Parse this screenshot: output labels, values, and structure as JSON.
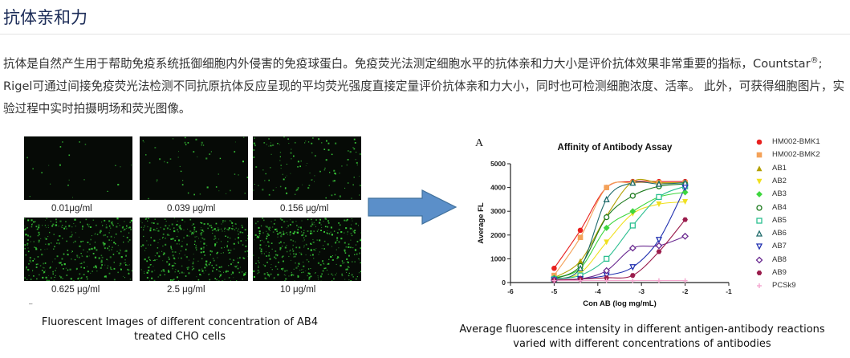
{
  "section": {
    "title": "抗体亲和力",
    "paragraph_pre": "抗体是自然产生用于帮助免疫系统抵御细胞内外侵害的免疫球蛋白。免疫荧光法测定细胞水平的抗体亲和力大小是评价抗体效果非常重要的指标，Countstar",
    "paragraph_reg": "®",
    "paragraph_post": "; Rigel可通过间接免疫荧光法检测不同抗原抗体反应呈现的平均荧光强度直接定量评价抗体亲和力大小，同时也可检测细胞浓度、活率。 此外，可获得细胞图片，实验过程中实时拍摄明场和荧光图像。"
  },
  "micrographs": {
    "images": [
      {
        "label": "0.01μg/ml",
        "density": 0.05
      },
      {
        "label": "0.039 μg/ml",
        "density": 0.12
      },
      {
        "label": "0.156 μg/ml",
        "density": 0.3
      },
      {
        "label": "0.625 μg/ml",
        "density": 0.85
      },
      {
        "label": "2.5 μg/ml",
        "density": 0.95
      },
      {
        "label": "10 μg/ml",
        "density": 1.0
      }
    ],
    "dot_color": "#3cd43c",
    "dash_mark": "–",
    "caption_line1": "Fluorescent Images of different concentration of AB4",
    "caption_line2": "treated CHO cells"
  },
  "arrow": {
    "color": "#5b8fc9",
    "border": "#41719c"
  },
  "chart_caption": {
    "line1": "Average fluorescence intensity in different antigen-antibody reactions",
    "line2": "varied with different concentrations of antibodies"
  },
  "chart_data": {
    "type": "scatter",
    "panel_label": "A",
    "title": "Affinity of Antibody Assay",
    "xlabel": "Con AB (log mg/mL)",
    "ylabel": "Average FL",
    "xlim": [
      -6,
      -1
    ],
    "ylim": [
      0,
      5000
    ],
    "xticks": [
      "-6",
      "-5",
      "-4",
      "-3",
      "-2",
      "-1"
    ],
    "yticks": [
      "0",
      "1000",
      "2000",
      "3000",
      "4000",
      "5000"
    ],
    "x": [
      -5,
      -4.4,
      -3.8,
      -3.2,
      -2.6,
      -2
    ],
    "legend_position": "right",
    "series": [
      {
        "name": "HM002-BMK1",
        "color": "#e8201e",
        "marker": "circle",
        "values": [
          600,
          2200,
          4000,
          4250,
          4250,
          4250
        ]
      },
      {
        "name": "HM002-BMK2",
        "color": "#f4a259",
        "marker": "square",
        "values": [
          300,
          1900,
          4000,
          4200,
          4200,
          4200
        ]
      },
      {
        "name": "AB1",
        "color": "#b3a000",
        "marker": "triangle",
        "values": [
          200,
          900,
          2800,
          4250,
          4200,
          4200
        ]
      },
      {
        "name": "AB2",
        "color": "#f0e020",
        "marker": "triangle-down",
        "values": [
          150,
          400,
          1700,
          2900,
          3300,
          3400
        ]
      },
      {
        "name": "AB3",
        "color": "#3ed63e",
        "marker": "diamond",
        "values": [
          200,
          600,
          2300,
          3000,
          3600,
          3800
        ]
      },
      {
        "name": "AB4",
        "color": "#1d7a1d",
        "marker": "circle-open",
        "values": [
          150,
          700,
          2750,
          3650,
          4050,
          4150
        ]
      },
      {
        "name": "AB5",
        "color": "#2bbf90",
        "marker": "square-open",
        "values": [
          150,
          300,
          1000,
          2400,
          3600,
          4050
        ]
      },
      {
        "name": "AB6",
        "color": "#1f6b6b",
        "marker": "triangle-open",
        "values": [
          150,
          600,
          3500,
          4200,
          4150,
          4200
        ]
      },
      {
        "name": "AB7",
        "color": "#2030b0",
        "marker": "triangle-down-open",
        "values": [
          100,
          150,
          300,
          650,
          1800,
          4000
        ]
      },
      {
        "name": "AB8",
        "color": "#6a2a90",
        "marker": "diamond-open",
        "values": [
          100,
          150,
          500,
          1450,
          1550,
          1950
        ]
      },
      {
        "name": "AB9",
        "color": "#9a1c4c",
        "marker": "hexagon",
        "values": [
          100,
          150,
          200,
          300,
          1300,
          2650
        ]
      },
      {
        "name": "PCSk9",
        "color": "#f4a6cf",
        "marker": "plus",
        "values": [
          80,
          80,
          80,
          80,
          80,
          80
        ]
      }
    ]
  }
}
